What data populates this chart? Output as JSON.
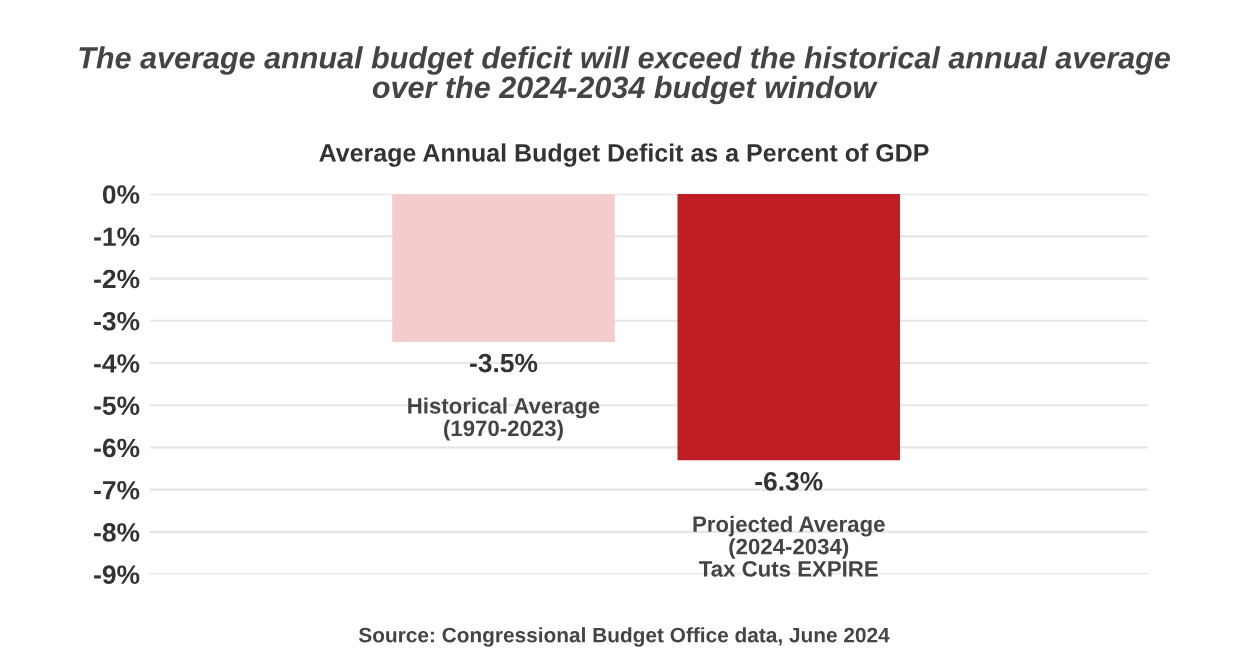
{
  "chart_data": {
    "type": "bar",
    "title": "The average annual budget deficit will exceed the historical annual average\nover the 2024-2034 budget window",
    "subtitle": "Average Annual Budget Deficit as a Percent of GDP",
    "categories": [
      "Historical Average\n(1970-2023)",
      "Projected Average\n(2024-2034)\nTax Cuts EXPIRE"
    ],
    "values": [
      -3.5,
      -6.3
    ],
    "colors": [
      "#f4cccc",
      "#be1e24"
    ],
    "value_labels": [
      "-3.5%",
      "-6.3%"
    ],
    "ylim": [
      -9,
      0
    ],
    "yticks": [
      {
        "value": 0,
        "label": "0%"
      },
      {
        "value": -1,
        "label": "-1%"
      },
      {
        "value": -2,
        "label": "-2%"
      },
      {
        "value": -3,
        "label": "-3%"
      },
      {
        "value": -4,
        "label": "-4%"
      },
      {
        "value": -5,
        "label": "-5%"
      },
      {
        "value": -6,
        "label": "-6%"
      },
      {
        "value": -7,
        "label": "-7%"
      },
      {
        "value": -8,
        "label": "-8%"
      },
      {
        "value": -9,
        "label": "-9%"
      }
    ],
    "grid": "y",
    "annotations": [
      "Source: Congressional Budget Office data, June 2024"
    ]
  }
}
